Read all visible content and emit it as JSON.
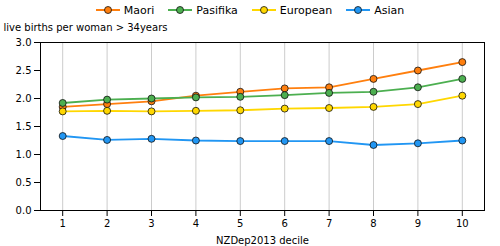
{
  "chart_data": {
    "type": "line",
    "xlabel": "NZDep2013 decile",
    "ylabel": "live births per woman > 34years",
    "x": [
      1,
      2,
      3,
      4,
      5,
      6,
      7,
      8,
      9,
      10
    ],
    "series": [
      {
        "name": "Maori",
        "color": "#FF7F0E",
        "values": [
          1.85,
          1.9,
          1.95,
          2.05,
          2.12,
          2.18,
          2.2,
          2.35,
          2.5,
          2.65
        ]
      },
      {
        "name": "Pasifika",
        "color": "#4CAF50",
        "values": [
          1.92,
          1.98,
          2.0,
          2.02,
          2.03,
          2.06,
          2.1,
          2.12,
          2.2,
          2.35
        ]
      },
      {
        "name": "European",
        "color": "#FFD700",
        "values": [
          1.77,
          1.78,
          1.77,
          1.78,
          1.79,
          1.82,
          1.83,
          1.85,
          1.9,
          2.05
        ]
      },
      {
        "name": "Asian",
        "color": "#2196F3",
        "values": [
          1.33,
          1.26,
          1.28,
          1.25,
          1.24,
          1.24,
          1.24,
          1.17,
          1.2,
          1.25
        ]
      }
    ],
    "xlim": [
      0.5,
      10.5
    ],
    "xticks": [
      1,
      2,
      3,
      4,
      5,
      6,
      7,
      8,
      9,
      10
    ],
    "ylim": [
      0,
      3.0
    ],
    "yticks": [
      {
        "value": 0,
        "label": "0.0"
      },
      0.5,
      {
        "value": 1.0,
        "label": "1.0"
      },
      1.5,
      {
        "value": 2.0,
        "label": "2.0"
      },
      2.5,
      {
        "value": 3.0,
        "label": "3.0"
      }
    ],
    "grid": "x",
    "legend": "top",
    "marker": "circle"
  }
}
